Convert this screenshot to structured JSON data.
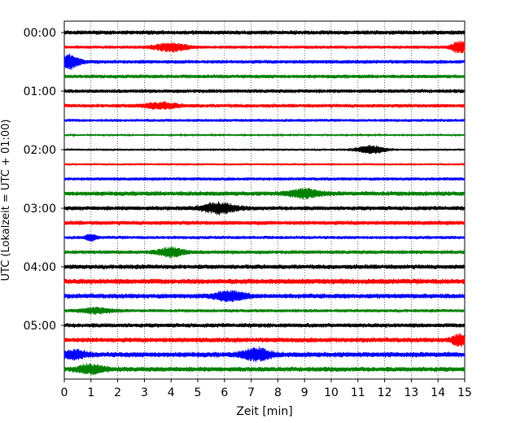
{
  "chart_data": {
    "type": "line",
    "title": "",
    "xlabel": "Zeit  [min]",
    "ylabel": "UTC (Lokalzeit = UTC + 01:00)",
    "xlim": [
      0,
      15
    ],
    "x_ticks": [
      "0",
      "1",
      "2",
      "3",
      "4",
      "5",
      "6",
      "7",
      "8",
      "9",
      "10",
      "11",
      "12",
      "13",
      "14",
      "15"
    ],
    "y_ticks": [
      "00:00",
      "01:00",
      "02:00",
      "03:00",
      "04:00",
      "05:00"
    ],
    "grid": "vertical dotted",
    "row_interval_min": 15,
    "colors": [
      "#000000",
      "#ff0000",
      "#0000ff",
      "#008000"
    ],
    "rows": [
      {
        "start": "00:00",
        "color": "#000000",
        "amplitude": 0.28,
        "bursts": []
      },
      {
        "start": "00:15",
        "color": "#ff0000",
        "amplitude": 0.22,
        "bursts": [
          {
            "t": 4.0,
            "amp": 0.55,
            "width": 0.6
          },
          {
            "t": 14.8,
            "amp": 0.8,
            "width": 0.3
          }
        ]
      },
      {
        "start": "00:30",
        "color": "#0000ff",
        "amplitude": 0.25,
        "bursts": [
          {
            "t": 0.2,
            "amp": 1.0,
            "width": 0.35
          }
        ]
      },
      {
        "start": "00:45",
        "color": "#008000",
        "amplitude": 0.25,
        "bursts": []
      },
      {
        "start": "01:00",
        "color": "#000000",
        "amplitude": 0.25,
        "bursts": []
      },
      {
        "start": "01:15",
        "color": "#ff0000",
        "amplitude": 0.25,
        "bursts": [
          {
            "t": 3.6,
            "amp": 0.4,
            "width": 0.6
          }
        ]
      },
      {
        "start": "01:30",
        "color": "#0000ff",
        "amplitude": 0.2,
        "bursts": []
      },
      {
        "start": "01:45",
        "color": "#008000",
        "amplitude": 0.12,
        "bursts": []
      },
      {
        "start": "02:00",
        "color": "#000000",
        "amplitude": 0.15,
        "bursts": [
          {
            "t": 11.5,
            "amp": 0.55,
            "width": 0.5
          }
        ]
      },
      {
        "start": "02:15",
        "color": "#ff0000",
        "amplitude": 0.15,
        "bursts": []
      },
      {
        "start": "02:30",
        "color": "#0000ff",
        "amplitude": 0.22,
        "bursts": []
      },
      {
        "start": "02:45",
        "color": "#008000",
        "amplitude": 0.3,
        "bursts": [
          {
            "t": 9.0,
            "amp": 0.55,
            "width": 0.6
          }
        ]
      },
      {
        "start": "03:00",
        "color": "#000000",
        "amplitude": 0.28,
        "bursts": [
          {
            "t": 5.8,
            "amp": 0.7,
            "width": 0.6
          }
        ]
      },
      {
        "start": "03:15",
        "color": "#ff0000",
        "amplitude": 0.28,
        "bursts": []
      },
      {
        "start": "03:30",
        "color": "#0000ff",
        "amplitude": 0.22,
        "bursts": [
          {
            "t": 1.0,
            "amp": 0.4,
            "width": 0.2
          }
        ]
      },
      {
        "start": "03:45",
        "color": "#008000",
        "amplitude": 0.25,
        "bursts": [
          {
            "t": 4.0,
            "amp": 0.6,
            "width": 0.5
          }
        ]
      },
      {
        "start": "04:00",
        "color": "#000000",
        "amplitude": 0.3,
        "bursts": []
      },
      {
        "start": "04:15",
        "color": "#ff0000",
        "amplitude": 0.35,
        "bursts": []
      },
      {
        "start": "04:30",
        "color": "#0000ff",
        "amplitude": 0.32,
        "bursts": [
          {
            "t": 6.2,
            "amp": 0.6,
            "width": 0.6
          }
        ]
      },
      {
        "start": "04:45",
        "color": "#008000",
        "amplitude": 0.22,
        "bursts": [
          {
            "t": 1.2,
            "amp": 0.35,
            "width": 0.6
          }
        ]
      },
      {
        "start": "05:00",
        "color": "#000000",
        "amplitude": 0.28,
        "bursts": []
      },
      {
        "start": "05:15",
        "color": "#ff0000",
        "amplitude": 0.32,
        "bursts": [
          {
            "t": 14.8,
            "amp": 0.7,
            "width": 0.3
          }
        ]
      },
      {
        "start": "05:30",
        "color": "#0000ff",
        "amplitude": 0.35,
        "bursts": [
          {
            "t": 7.2,
            "amp": 0.85,
            "width": 0.5
          },
          {
            "t": 0.4,
            "amp": 0.55,
            "width": 0.4
          }
        ]
      },
      {
        "start": "05:45",
        "color": "#008000",
        "amplitude": 0.32,
        "bursts": [
          {
            "t": 1.0,
            "amp": 0.55,
            "width": 0.5
          }
        ]
      }
    ]
  }
}
